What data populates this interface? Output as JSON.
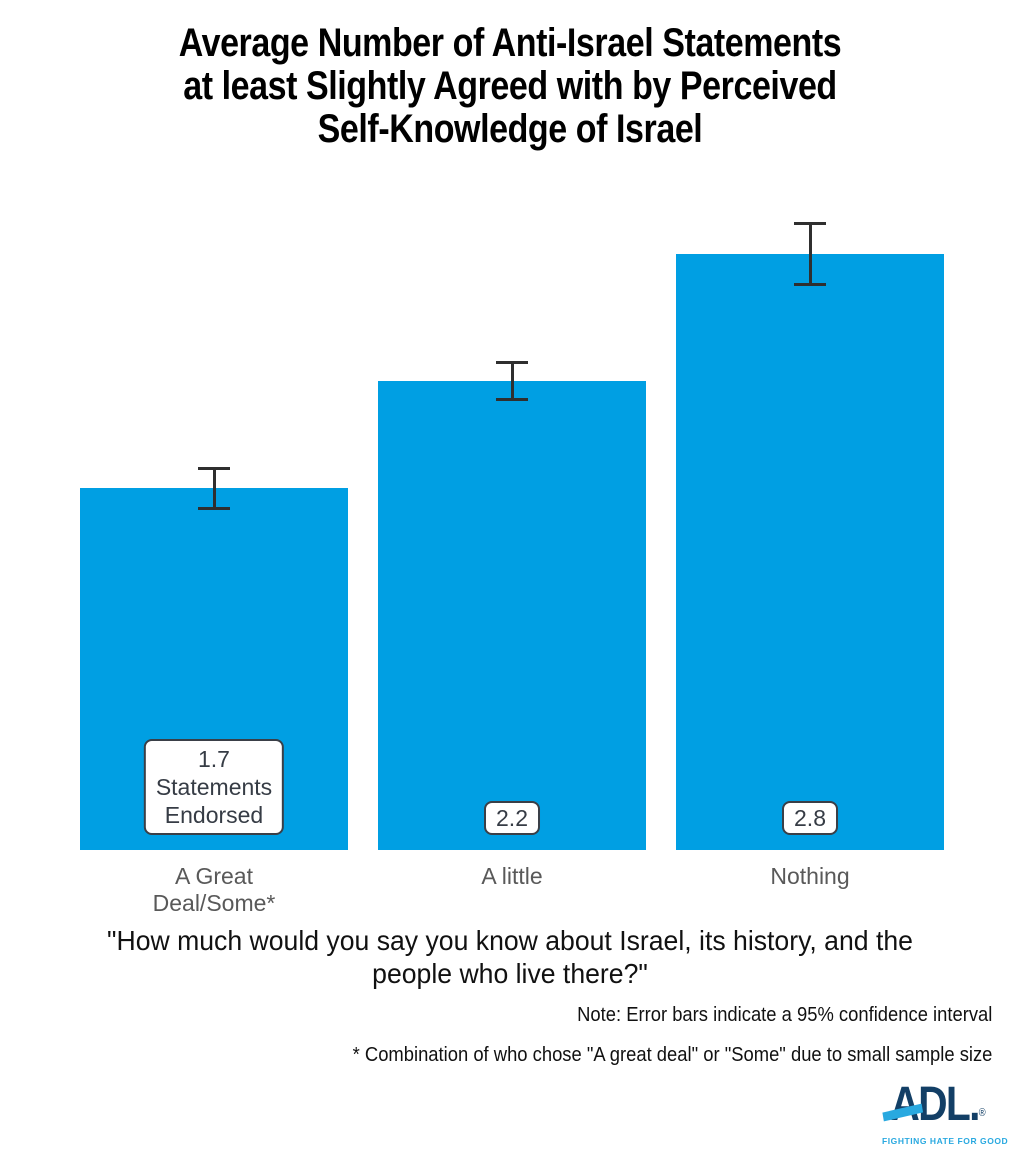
{
  "title": {
    "lines": [
      "Average Number of Anti-Israel Statements",
      "at least Slightly Agreed with by Perceived",
      "Self-Knowledge of Israel"
    ]
  },
  "chart_data": {
    "type": "bar",
    "title": "Average Number of Anti-Israel Statements at least Slightly Agreed with by Perceived Self-Knowledge of Israel",
    "categories": [
      "A Great Deal/Some*",
      "A little",
      "Nothing"
    ],
    "values": [
      1.7,
      2.2,
      2.8
    ],
    "errors": [
      0.1,
      0.095,
      0.15
    ],
    "bar_labels": [
      [
        "1.7",
        "Statements",
        "Endorsed"
      ],
      [
        "2.2"
      ],
      [
        "2.8"
      ]
    ],
    "xlabel": "\"How much would you say you know about Israel, its history, and the people who live there?\"",
    "ylabel": "",
    "ylim": [
      0,
      3
    ],
    "grid": false,
    "legend": "none",
    "bar_color": "#009FE3",
    "error_bar_color": "#2F2F2F",
    "error_note": "Error bars indicate a 95% confidence interval"
  },
  "question": {
    "lines": [
      "\"How much would you say you know about Israel, its history, and the",
      "people who live there?\""
    ]
  },
  "notes": {
    "ci_note": "Note: Error bars indicate a 95% confidence interval",
    "footnote": "* Combination of who chose \"A great deal\" or \"Some\" due to small sample size"
  },
  "logo": {
    "name": "adl-logo",
    "text": "ADL.",
    "registered": "®",
    "tagline": "FIGHTING HATE FOR GOOD",
    "navy": "#133F66",
    "light_blue": "#29A9E0"
  }
}
